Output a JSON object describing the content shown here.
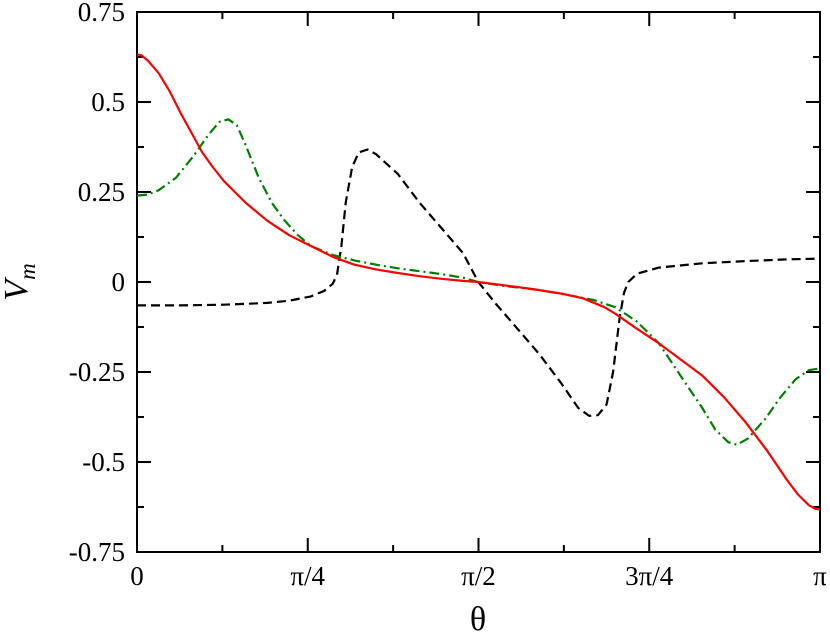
{
  "chart_data": {
    "type": "line",
    "title": "",
    "xlabel": "θ",
    "ylabel": "V",
    "ylabel_subscript": "m",
    "xlim": [
      0,
      3.14159
    ],
    "ylim": [
      -0.75,
      0.75
    ],
    "x_ticks": [
      {
        "value": 0,
        "label": "0"
      },
      {
        "value": 0.7854,
        "label": "π/4"
      },
      {
        "value": 1.5708,
        "label": "π/2"
      },
      {
        "value": 2.3562,
        "label": "3π/4"
      },
      {
        "value": 3.14159,
        "label": "π"
      }
    ],
    "y_ticks": [
      {
        "value": 0.75,
        "label": "0.75"
      },
      {
        "value": 0.5,
        "label": "0.5"
      },
      {
        "value": 0.25,
        "label": "0.25"
      },
      {
        "value": 0,
        "label": "0"
      },
      {
        "value": -0.25,
        "label": "-0.25"
      },
      {
        "value": -0.5,
        "label": "-0.5"
      },
      {
        "value": -0.75,
        "label": "-0.75"
      }
    ],
    "grid": false,
    "legend": "none",
    "series": [
      {
        "color": "#000000",
        "style": "dashed",
        "x": [
          0,
          0.2,
          0.4,
          0.6,
          0.7,
          0.8,
          0.86,
          0.9,
          0.92,
          0.94,
          0.96,
          0.99,
          1.02,
          1.06,
          1.1,
          1.2,
          1.3,
          1.4,
          1.5,
          1.57,
          1.65,
          1.75,
          1.85,
          1.95,
          2.03,
          2.08,
          2.12,
          2.16,
          2.19,
          2.22,
          2.24,
          2.26,
          2.3,
          2.4,
          2.6,
          2.8,
          3.0,
          3.14159
        ],
        "y": [
          -0.065,
          -0.065,
          -0.063,
          -0.058,
          -0.052,
          -0.04,
          -0.025,
          -0.005,
          0.02,
          0.1,
          0.22,
          0.32,
          0.36,
          0.368,
          0.355,
          0.3,
          0.22,
          0.15,
          0.08,
          0.0,
          -0.06,
          -0.13,
          -0.2,
          -0.28,
          -0.35,
          -0.372,
          -0.37,
          -0.34,
          -0.25,
          -0.1,
          -0.03,
          0.0,
          0.023,
          0.04,
          0.052,
          0.058,
          0.063,
          0.065
        ]
      },
      {
        "color": "#008000",
        "style": "dashdot",
        "x": [
          0,
          0.05,
          0.1,
          0.18,
          0.26,
          0.33,
          0.38,
          0.42,
          0.46,
          0.5,
          0.56,
          0.62,
          0.68,
          0.74,
          0.8,
          0.9,
          1.0,
          1.1,
          1.2,
          1.3,
          1.4,
          1.5,
          1.57,
          1.7,
          1.85,
          2.0,
          2.1,
          2.2,
          2.3,
          2.4,
          2.5,
          2.6,
          2.66,
          2.72,
          2.76,
          2.81,
          2.89,
          2.96,
          3.03,
          3.09,
          3.14159
        ],
        "y": [
          0.24,
          0.243,
          0.255,
          0.29,
          0.35,
          0.41,
          0.445,
          0.452,
          0.435,
          0.38,
          0.29,
          0.22,
          0.17,
          0.13,
          0.1,
          0.075,
          0.06,
          0.048,
          0.038,
          0.03,
          0.022,
          0.012,
          0.0,
          -0.012,
          -0.022,
          -0.038,
          -0.05,
          -0.07,
          -0.11,
          -0.17,
          -0.26,
          -0.35,
          -0.41,
          -0.445,
          -0.452,
          -0.435,
          -0.38,
          -0.32,
          -0.27,
          -0.245,
          -0.24
        ]
      },
      {
        "color": "#ff0000",
        "style": "solid",
        "x": [
          0,
          0.02,
          0.05,
          0.1,
          0.15,
          0.2,
          0.25,
          0.3,
          0.35,
          0.4,
          0.45,
          0.5,
          0.6,
          0.7,
          0.8,
          0.9,
          1.0,
          1.1,
          1.2,
          1.3,
          1.4,
          1.5,
          1.57,
          1.65,
          1.8,
          1.95,
          2.05,
          2.15,
          2.2,
          2.3,
          2.4,
          2.5,
          2.6,
          2.7,
          2.8,
          2.9,
          2.99,
          3.04,
          3.09,
          3.12,
          3.14159
        ],
        "y": [
          0.632,
          0.63,
          0.615,
          0.58,
          0.53,
          0.47,
          0.415,
          0.36,
          0.318,
          0.28,
          0.25,
          0.22,
          0.17,
          0.13,
          0.1,
          0.07,
          0.048,
          0.035,
          0.025,
          0.016,
          0.009,
          0.003,
          0.0,
          -0.006,
          -0.018,
          -0.032,
          -0.045,
          -0.07,
          -0.088,
          -0.13,
          -0.17,
          -0.215,
          -0.26,
          -0.32,
          -0.39,
          -0.47,
          -0.55,
          -0.59,
          -0.62,
          -0.63,
          -0.632
        ]
      }
    ]
  }
}
